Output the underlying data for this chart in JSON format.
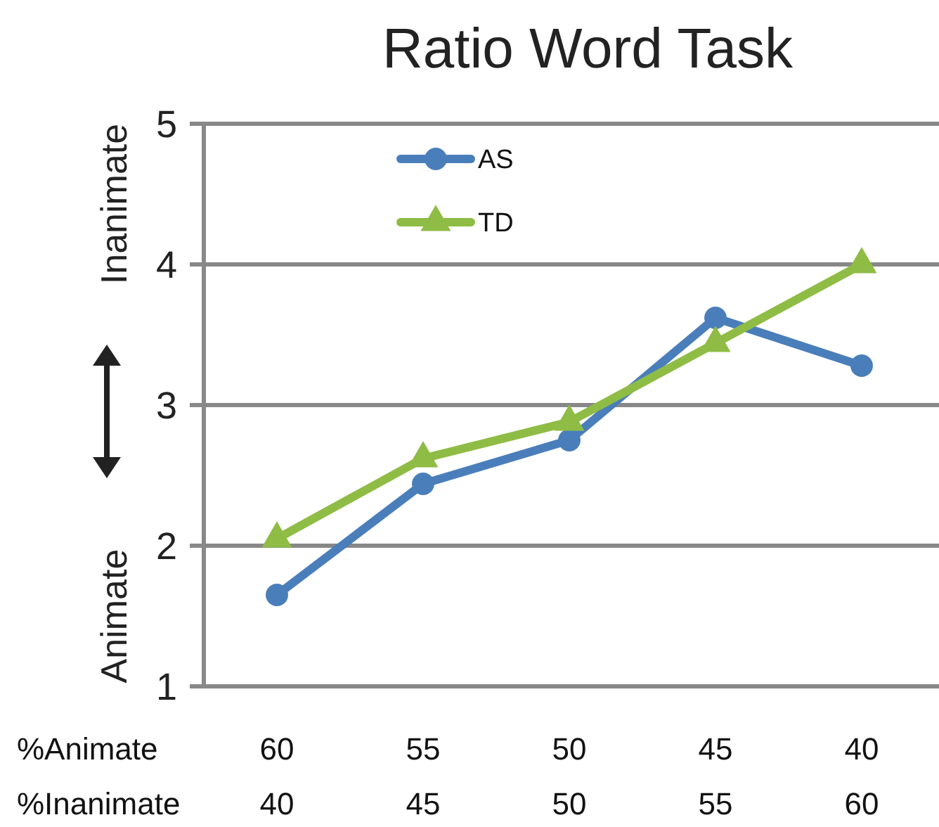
{
  "chart_data": {
    "type": "line",
    "title": "Ratio Word Task",
    "categories": [
      "60\n40",
      "55\n45",
      "50\n50",
      "45\n55",
      "40\n60"
    ],
    "series": [
      {
        "name": "AS",
        "color": "#4a7ebb",
        "marker": "circle",
        "values": [
          1.65,
          2.44,
          2.75,
          3.62,
          3.28
        ]
      },
      {
        "name": "TD",
        "color": "#8fbc45",
        "marker": "triangle",
        "values": [
          2.05,
          2.62,
          2.88,
          3.44,
          4.0
        ]
      }
    ],
    "ylim": [
      1,
      5
    ],
    "yticks": [
      1,
      2,
      3,
      4,
      5
    ],
    "grid": "y",
    "legend": "top left",
    "annotations": [
      "Animate",
      "Inanimate",
      "%Animate",
      "%Inanimate"
    ]
  }
}
